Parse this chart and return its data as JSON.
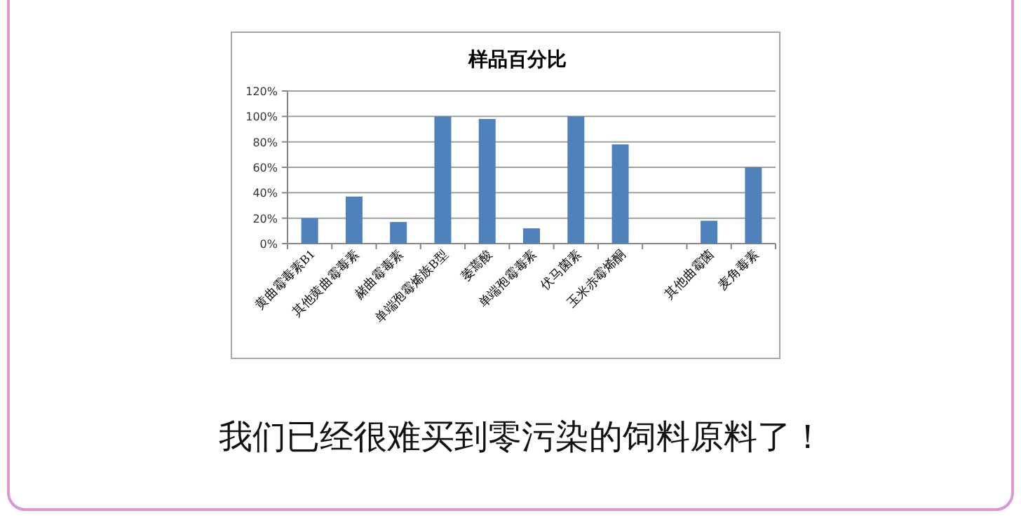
{
  "chart_data": {
    "type": "bar",
    "title": "样品百分比",
    "categories": [
      "黄曲霉毒素B1",
      "其他黄曲霉毒素",
      "赭曲霉毒素",
      "单端孢霉烯族B型",
      "萎蔫酸",
      "单端孢霉毒素",
      "伏马菌素",
      "玉米赤霉烯酮",
      null,
      "其他曲霉菌",
      "麦角毒素"
    ],
    "values": [
      20,
      37,
      17,
      100,
      98,
      12,
      100,
      78,
      null,
      18,
      60
    ],
    "color": "#4f81bd",
    "ylim": [
      0,
      120
    ],
    "yticks": [
      {
        "value": 0,
        "label": "0%"
      },
      {
        "value": 20,
        "label": "20%"
      },
      {
        "value": 40,
        "label": "40%"
      },
      {
        "value": 60,
        "label": "60%"
      },
      {
        "value": 80,
        "label": "80%"
      },
      {
        "value": 100,
        "label": "100%"
      },
      {
        "value": 120,
        "label": "120%"
      }
    ],
    "grid": "y",
    "annotations": [
      "我们已经很难买到零污染的饲料原料了！"
    ]
  }
}
